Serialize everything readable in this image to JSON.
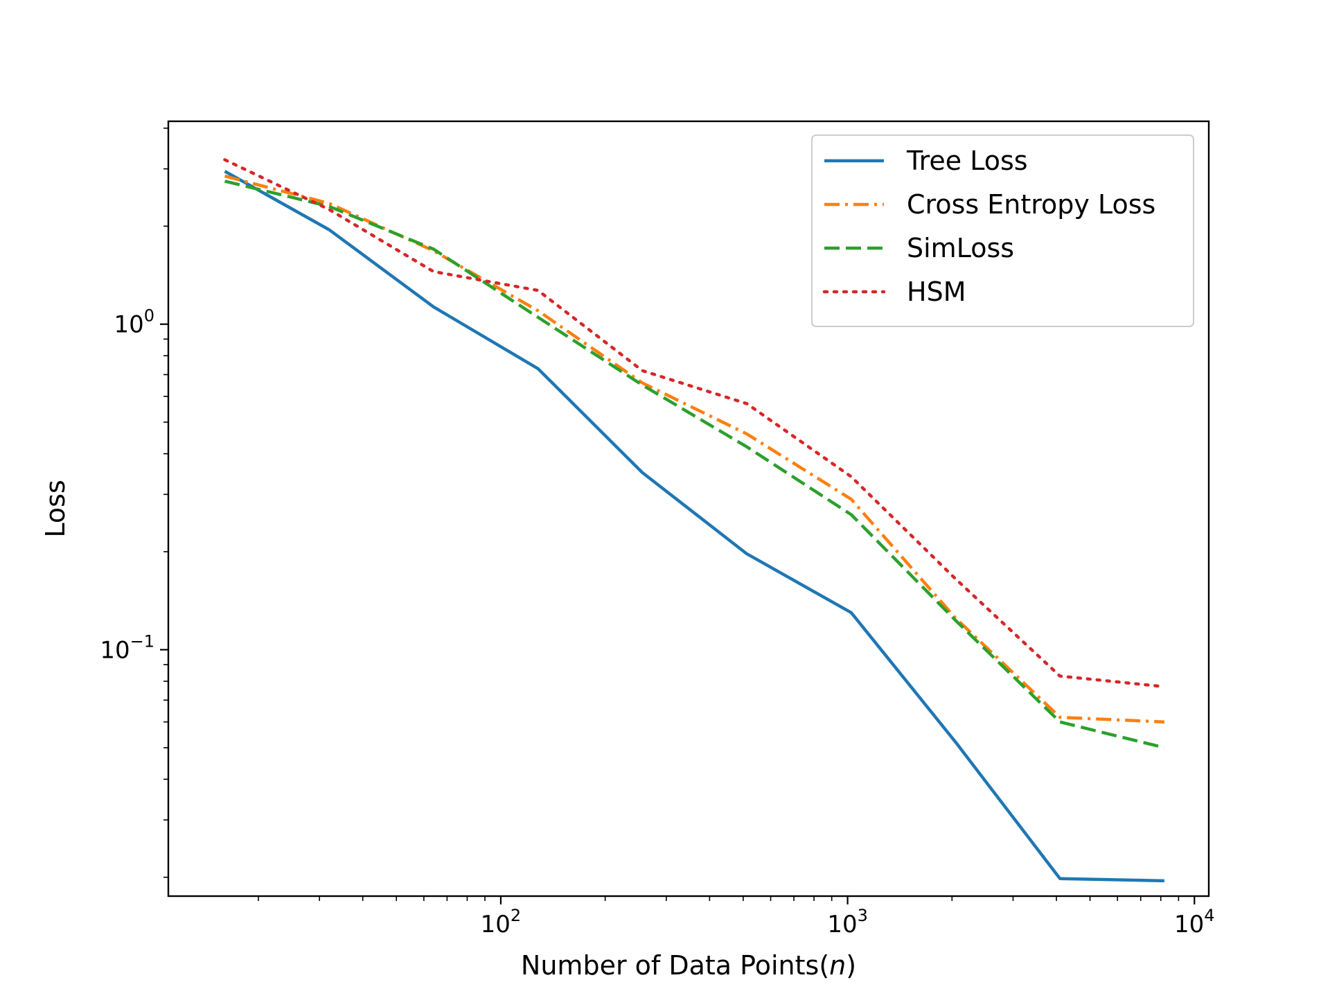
{
  "chart_data": {
    "type": "line",
    "xlabel": "Number of Data Points(",
    "xlabel_var": "n",
    "xlabel_end": ")",
    "ylabel": "Loss",
    "xscale": "log",
    "yscale": "log",
    "xlim": [
      11,
      11000
    ],
    "ylim": [
      0.0175,
      4.2
    ],
    "xticks": [
      {
        "value": 100,
        "base": "10",
        "exp": "2"
      },
      {
        "value": 1000,
        "base": "10",
        "exp": "3"
      },
      {
        "value": 10000,
        "base": "10",
        "exp": "4"
      }
    ],
    "yticks": [
      {
        "value": 1,
        "base": "10",
        "exp": "0"
      },
      {
        "value": 0.1,
        "base": "10",
        "exp": "−1"
      }
    ],
    "grid": false,
    "legend_position": "top-right",
    "x": [
      16,
      32,
      64,
      128,
      256,
      512,
      1024,
      2048,
      4096,
      8192
    ],
    "series": [
      {
        "name": "Tree Loss",
        "color": "#1f77b4",
        "style": "solid",
        "values": [
          2.95,
          1.95,
          1.13,
          0.73,
          0.35,
          0.197,
          0.13,
          0.052,
          0.0198,
          0.0195
        ]
      },
      {
        "name": "Cross Entropy Loss",
        "color": "#ff7f0e",
        "style": "dashdot",
        "values": [
          2.85,
          2.35,
          1.68,
          1.1,
          0.66,
          0.46,
          0.29,
          0.125,
          0.062,
          0.06
        ]
      },
      {
        "name": "SimLoss",
        "color": "#2ca02c",
        "style": "dashed",
        "values": [
          2.75,
          2.3,
          1.7,
          1.05,
          0.65,
          0.42,
          0.26,
          0.123,
          0.06,
          0.05
        ]
      },
      {
        "name": "HSM",
        "color": "#d62728",
        "style": "dotted",
        "values": [
          3.2,
          2.25,
          1.45,
          1.27,
          0.72,
          0.57,
          0.34,
          0.165,
          0.083,
          0.077
        ]
      }
    ]
  }
}
